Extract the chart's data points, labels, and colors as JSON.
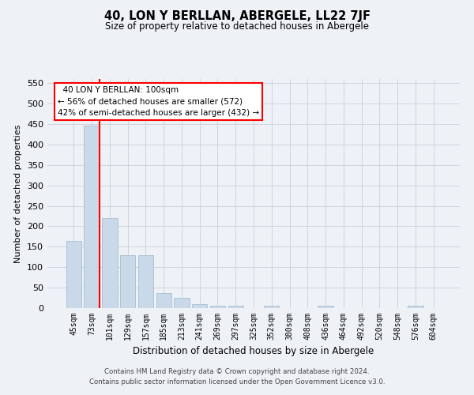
{
  "title": "40, LON Y BERLLAN, ABERGELE, LL22 7JF",
  "subtitle": "Size of property relative to detached houses in Abergele",
  "xlabel": "Distribution of detached houses by size in Abergele",
  "ylabel": "Number of detached properties",
  "bar_color": "#c9d9e9",
  "bar_edge_color": "#a8bece",
  "grid_color": "#c8d0dc",
  "annotation_line_color": "red",
  "annotation_box_color": "red",
  "annotation_text": "  40 LON Y BERLLAN: 100sqm\n← 56% of detached houses are smaller (572)\n42% of semi-detached houses are larger (432) →",
  "categories": [
    "45sqm",
    "73sqm",
    "101sqm",
    "129sqm",
    "157sqm",
    "185sqm",
    "213sqm",
    "241sqm",
    "269sqm",
    "297sqm",
    "325sqm",
    "352sqm",
    "380sqm",
    "408sqm",
    "436sqm",
    "464sqm",
    "492sqm",
    "520sqm",
    "548sqm",
    "576sqm",
    "604sqm"
  ],
  "values": [
    165,
    447,
    220,
    130,
    130,
    37,
    25,
    10,
    6,
    5,
    0,
    5,
    0,
    0,
    5,
    0,
    0,
    0,
    0,
    5,
    0
  ],
  "ylim": [
    0,
    560
  ],
  "yticks": [
    0,
    50,
    100,
    150,
    200,
    250,
    300,
    350,
    400,
    450,
    500,
    550
  ],
  "red_line_bar_index": 1,
  "footer_line1": "Contains HM Land Registry data © Crown copyright and database right 2024.",
  "footer_line2": "Contains public sector information licensed under the Open Government Licence v3.0.",
  "bg_color": "#eef2f6"
}
